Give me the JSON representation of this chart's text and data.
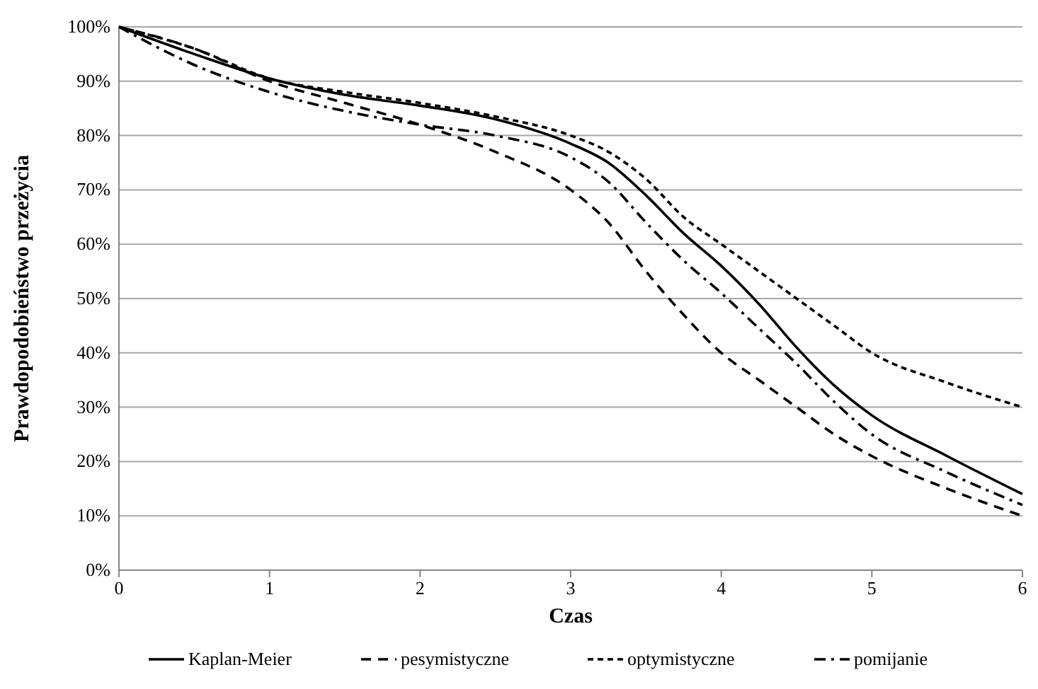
{
  "chart_data": {
    "type": "line",
    "xlabel": "Czas",
    "ylabel": "Prawdopodobieństwo przeżycia",
    "xlim": [
      0,
      6
    ],
    "xticks": [
      0,
      1,
      2,
      3,
      4,
      5,
      6
    ],
    "ylim": [
      0,
      100
    ],
    "yticks": [
      {
        "value": 0,
        "label": "0%"
      },
      {
        "value": 10,
        "label": "10%"
      },
      {
        "value": 20,
        "label": "20%"
      },
      {
        "value": 30,
        "label": "30%"
      },
      {
        "value": 40,
        "label": "40%"
      },
      {
        "value": 50,
        "label": "50%"
      },
      {
        "value": 60,
        "label": "60%"
      },
      {
        "value": 70,
        "label": "70%"
      },
      {
        "value": 80,
        "label": "80%"
      },
      {
        "value": 90,
        "label": "90%"
      },
      {
        "value": 100,
        "label": "100%"
      }
    ],
    "grid": "y",
    "legend": "bottom",
    "marker": "none",
    "x": [
      0,
      0.5,
      1,
      1.5,
      2,
      2.5,
      3,
      3.25,
      3.5,
      3.75,
      4,
      4.25,
      4.5,
      4.75,
      5,
      5.5,
      6
    ],
    "series": [
      {
        "name": "Kaplan-Meier",
        "color": "#000000",
        "line_style": "solid",
        "values": [
          100,
          95,
          90.5,
          87.5,
          85.5,
          83,
          78.5,
          75,
          69,
          62,
          56,
          49,
          41,
          34,
          28.5,
          21,
          14
        ]
      },
      {
        "name": "pesymistyczne",
        "color": "#000000",
        "line_style": "dashed",
        "values": [
          100,
          96,
          90,
          86,
          82,
          77,
          70,
          64,
          55,
          47,
          40,
          35,
          30,
          25,
          21,
          15,
          10
        ]
      },
      {
        "name": "optymistyczne",
        "color": "#000000",
        "line_style": "dotted",
        "values": [
          100,
          96,
          90.5,
          88,
          86,
          83.5,
          80,
          77,
          72,
          65,
          60,
          55,
          50,
          45,
          40,
          34.5,
          30
        ]
      },
      {
        "name": "pomijanie",
        "color": "#000000",
        "line_style": "dashdot",
        "values": [
          100,
          93,
          88,
          84.5,
          82,
          80,
          76,
          71.5,
          64,
          57,
          51,
          44.5,
          38,
          31,
          25,
          18,
          12
        ]
      }
    ]
  }
}
